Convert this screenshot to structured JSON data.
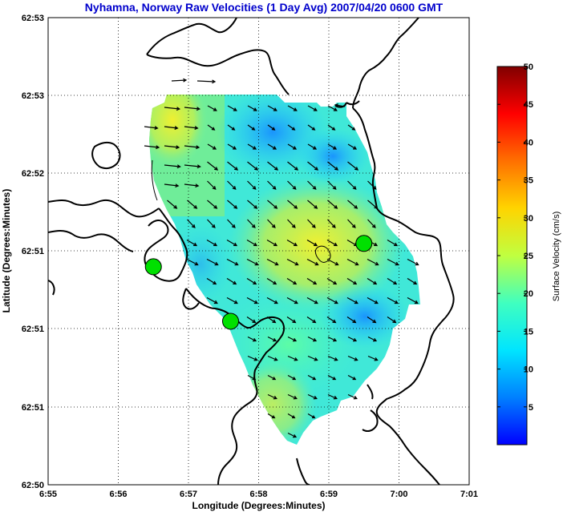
{
  "chart_data": {
    "type": "heatmap",
    "title": "Nyhamna, Norway Raw Velocities (1 Day Avg) 2007/04/20 0600 GMT",
    "xlabel": "Longitude (Degrees:Minutes)",
    "ylabel": "Latitude (Degrees:Minutes)",
    "x_ticks": [
      "6:55",
      "6:56",
      "6:57",
      "6:58",
      "6:59",
      "7:00",
      "7:01"
    ],
    "y_ticks": [
      "62:50",
      "62:51",
      "62:51",
      "62:51",
      "62:52",
      "62:53",
      "62:53"
    ],
    "xlim": [
      0,
      6
    ],
    "ylim": [
      0,
      6
    ],
    "grid": true,
    "colorbar": {
      "label": "Surface Velocity (cm/s)",
      "ticks": [
        "5",
        "10",
        "15",
        "20",
        "25",
        "30",
        "35",
        "40",
        "45",
        "50"
      ],
      "range": [
        0,
        50
      ]
    },
    "stations": [
      {
        "x": 1.5,
        "y": 2.8
      },
      {
        "x": 2.6,
        "y": 2.1
      },
      {
        "x": 4.5,
        "y": 3.1
      }
    ]
  }
}
